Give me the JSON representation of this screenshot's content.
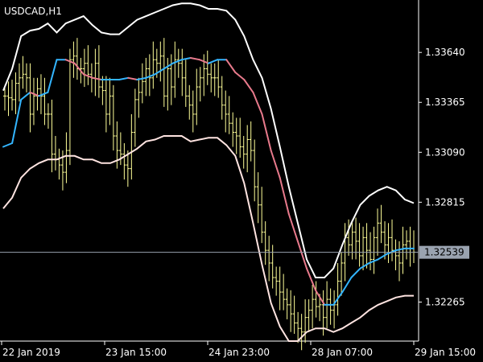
{
  "chart_data": {
    "type": "line",
    "title": "USDCAD,H1",
    "ylim": [
      1.3205,
      1.3392
    ],
    "y_ticks": [
      "1.33640",
      "1.33365",
      "1.33090",
      "1.32815",
      "1.32265"
    ],
    "current_price": "1.32539",
    "x_ticks": [
      "22 Jan 2019",
      "23 Jan 15:00",
      "24 Jan 23:00",
      "28 Jan 07:00",
      "29 Jan 15:00"
    ],
    "colors": {
      "background": "#000000",
      "price_bars": "#ffff99",
      "upper_band": "#ffffff",
      "lower_band": "#ffe4e1",
      "middle_rising": "#33b5ff",
      "middle_falling": "#e87a8c",
      "price_line": "#9aa3b0",
      "price_label_bg": "#9aa3b0"
    },
    "series": [
      {
        "values": [
          1.3312,
          1.3314,
          1.3338,
          1.3342,
          1.334,
          1.3342,
          1.336,
          1.336,
          1.3358,
          1.3352,
          1.335,
          1.3349,
          1.3349,
          1.3349,
          1.335,
          1.3349,
          1.335,
          1.3352,
          1.3355,
          1.3358,
          1.336,
          1.3361,
          1.336,
          1.3358,
          1.336,
          1.336,
          1.3353,
          1.3349,
          1.3342,
          1.333,
          1.331,
          1.3295,
          1.3275,
          1.326,
          1.3245,
          1.3233,
          1.3225,
          1.3225,
          1.3232,
          1.324,
          1.3245,
          1.3248,
          1.325,
          1.3253,
          1.3255,
          1.3256,
          1.3256
        ]
      },
      {
        "values": [
          1.3343,
          1.3355,
          1.3373,
          1.3376,
          1.3377,
          1.338,
          1.3375,
          1.338,
          1.3382,
          1.3384,
          1.3379,
          1.3375,
          1.3374,
          1.3374,
          1.3378,
          1.3382,
          1.3384,
          1.3386,
          1.3388,
          1.339,
          1.3391,
          1.3391,
          1.339,
          1.3388,
          1.3388,
          1.3387,
          1.3382,
          1.3373,
          1.336,
          1.335,
          1.3333,
          1.3312,
          1.329,
          1.327,
          1.325,
          1.324,
          1.324,
          1.3245,
          1.3258,
          1.327,
          1.328,
          1.3285,
          1.3288,
          1.329,
          1.3288,
          1.3283,
          1.3281
        ]
      },
      {
        "values": [
          1.3278,
          1.3284,
          1.3295,
          1.33,
          1.3303,
          1.3305,
          1.3305,
          1.3307,
          1.3307,
          1.3305,
          1.3305,
          1.3303,
          1.3303,
          1.3305,
          1.3308,
          1.3311,
          1.3315,
          1.3316,
          1.3318,
          1.3318,
          1.3318,
          1.3315,
          1.3316,
          1.3317,
          1.3317,
          1.3313,
          1.3307,
          1.3292,
          1.327,
          1.3247,
          1.3226,
          1.3213,
          1.3205,
          1.3205,
          1.321,
          1.3212,
          1.3212,
          1.321,
          1.3212,
          1.3215,
          1.3218,
          1.3222,
          1.3225,
          1.3227,
          1.3229,
          1.323,
          1.323
        ]
      },
      {
        "values": [
          1.334,
          1.3339,
          1.3338,
          1.3347,
          1.335,
          1.3352,
          1.335,
          1.333,
          1.334,
          1.3344,
          1.334,
          1.333,
          1.333,
          1.3308,
          1.3305,
          1.3302,
          1.3298,
          1.331,
          1.336,
          1.3362,
          1.3355,
          1.3355,
          1.3358,
          1.3352,
          1.335,
          1.3358,
          1.3345,
          1.3343,
          1.333,
          1.334,
          1.3318,
          1.331,
          1.3308,
          1.3302,
          1.33,
          1.332,
          1.3338,
          1.3342,
          1.3348,
          1.3355,
          1.335,
          1.336,
          1.3358,
          1.3362,
          1.334,
          1.3355,
          1.3345,
          1.336,
          1.3358,
          1.335,
          1.334,
          1.3335,
          1.333,
          1.3345,
          1.335,
          1.3355,
          1.3352,
          1.335,
          1.335,
          1.3345,
          1.3335,
          1.333,
          1.3325,
          1.332,
          1.3318,
          1.3312,
          1.3308,
          1.3316,
          1.331,
          1.329,
          1.328,
          1.3265,
          1.3255,
          1.3248,
          1.324,
          1.3238,
          1.3232,
          1.3228,
          1.3225,
          1.322,
          1.3215,
          1.3212,
          1.321,
          1.3218,
          1.3222,
          1.3228,
          1.3224,
          1.3225,
          1.3218,
          1.3228,
          1.3222,
          1.3225,
          1.3238,
          1.3248,
          1.3262,
          1.3258,
          1.3265,
          1.326,
          1.3252,
          1.3262,
          1.3255,
          1.325,
          1.3262,
          1.327,
          1.3265,
          1.3258,
          1.3262,
          1.3255,
          1.3252,
          1.3248,
          1.3258,
          1.326,
          1.3256,
          1.3254
        ]
      }
    ]
  }
}
